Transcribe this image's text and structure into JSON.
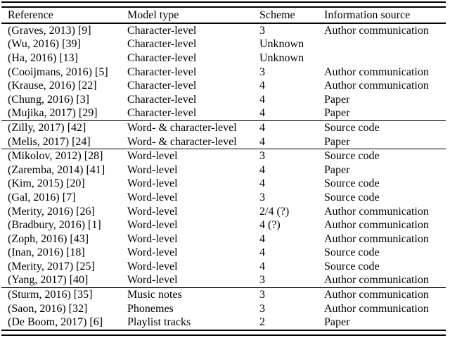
{
  "colors": {
    "background": "#ffffff",
    "text": "#000000",
    "rule": "#000000"
  },
  "table": {
    "columns": [
      "Reference",
      "Model type",
      "Scheme",
      "Information source"
    ],
    "groups": [
      {
        "rows": [
          {
            "reference": "(Graves, 2013) [9]",
            "model_type": "Character-level",
            "scheme": "3",
            "source": "Author communication"
          },
          {
            "reference": "(Wu, 2016) [39]",
            "model_type": "Character-level",
            "scheme": "Unknown",
            "source": ""
          },
          {
            "reference": "(Ha, 2016) [13]",
            "model_type": "Character-level",
            "scheme": "Unknown",
            "source": ""
          },
          {
            "reference": "(Cooijmans, 2016) [5]",
            "model_type": "Character-level",
            "scheme": "3",
            "source": "Author communication"
          },
          {
            "reference": "(Krause, 2016) [22]",
            "model_type": "Character-level",
            "scheme": "4",
            "source": "Author communication"
          },
          {
            "reference": "(Chung, 2016) [3]",
            "model_type": "Character-level",
            "scheme": "4",
            "source": "Paper"
          },
          {
            "reference": "(Mujika, 2017) [29]",
            "model_type": "Character-level",
            "scheme": "4",
            "source": "Paper"
          }
        ]
      },
      {
        "rows": [
          {
            "reference": "(Zilly, 2017) [42]",
            "model_type": "Word- & character-level",
            "scheme": "4",
            "source": "Source code"
          },
          {
            "reference": "(Melis, 2017) [24]",
            "model_type": "Word- & character-level",
            "scheme": "4",
            "source": "Paper"
          }
        ]
      },
      {
        "rows": [
          {
            "reference": "(Mikolov, 2012) [28]",
            "model_type": "Word-level",
            "scheme": "3",
            "source": "Source code"
          },
          {
            "reference": "(Zaremba, 2014) [41]",
            "model_type": "Word-level",
            "scheme": "4",
            "source": "Paper"
          },
          {
            "reference": "(Kim, 2015) [20]",
            "model_type": "Word-level",
            "scheme": "4",
            "source": "Source code"
          },
          {
            "reference": "(Gal, 2016) [7]",
            "model_type": "Word-level",
            "scheme": "3",
            "source": "Source code"
          },
          {
            "reference": "(Merity, 2016) [26]",
            "model_type": "Word-level",
            "scheme": "2/4 (?)",
            "source": "Author communication"
          },
          {
            "reference": "(Bradbury, 2016) [1]",
            "model_type": "Word-level",
            "scheme": "4 (?)",
            "source": "Author communication"
          },
          {
            "reference": "(Zoph, 2016) [43]",
            "model_type": "Word-level",
            "scheme": "4",
            "source": "Author communication"
          },
          {
            "reference": "(Inan, 2016) [18]",
            "model_type": "Word-level",
            "scheme": "4",
            "source": "Source code"
          },
          {
            "reference": "(Merity, 2017) [25]",
            "model_type": "Word-level",
            "scheme": "4",
            "source": "Source code"
          },
          {
            "reference": "(Yang, 2017) [40]",
            "model_type": "Word-level",
            "scheme": "3",
            "source": "Author communication"
          }
        ]
      },
      {
        "rows": [
          {
            "reference": "(Sturm, 2016) [35]",
            "model_type": "Music notes",
            "scheme": "3",
            "source": "Author communication"
          },
          {
            "reference": "(Saon, 2016) [32]",
            "model_type": "Phonemes",
            "scheme": "3",
            "source": "Author communication"
          },
          {
            "reference": "(De Boom, 2017) [6]",
            "model_type": "Playlist tracks",
            "scheme": "2",
            "source": "Paper"
          }
        ]
      }
    ]
  }
}
